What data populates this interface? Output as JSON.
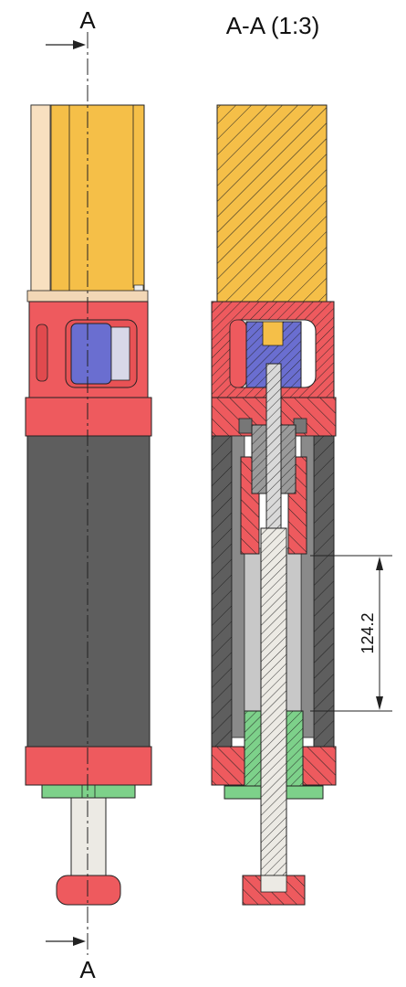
{
  "drawing": {
    "section_marker_top": "A",
    "section_marker_bottom": "A",
    "section_view_title": "A-A (1:3)",
    "dimension_value": "124.2"
  },
  "colors": {
    "orange_body": "#F5BF48",
    "light_strip": "#F8E0C0",
    "red_part": "#EE5A5E",
    "blue_part": "#6A6ED0",
    "dark_tube": "#5E5E5E",
    "green_part": "#7DD18A",
    "white_rod": "#ECEAE4",
    "line": "#222222"
  }
}
